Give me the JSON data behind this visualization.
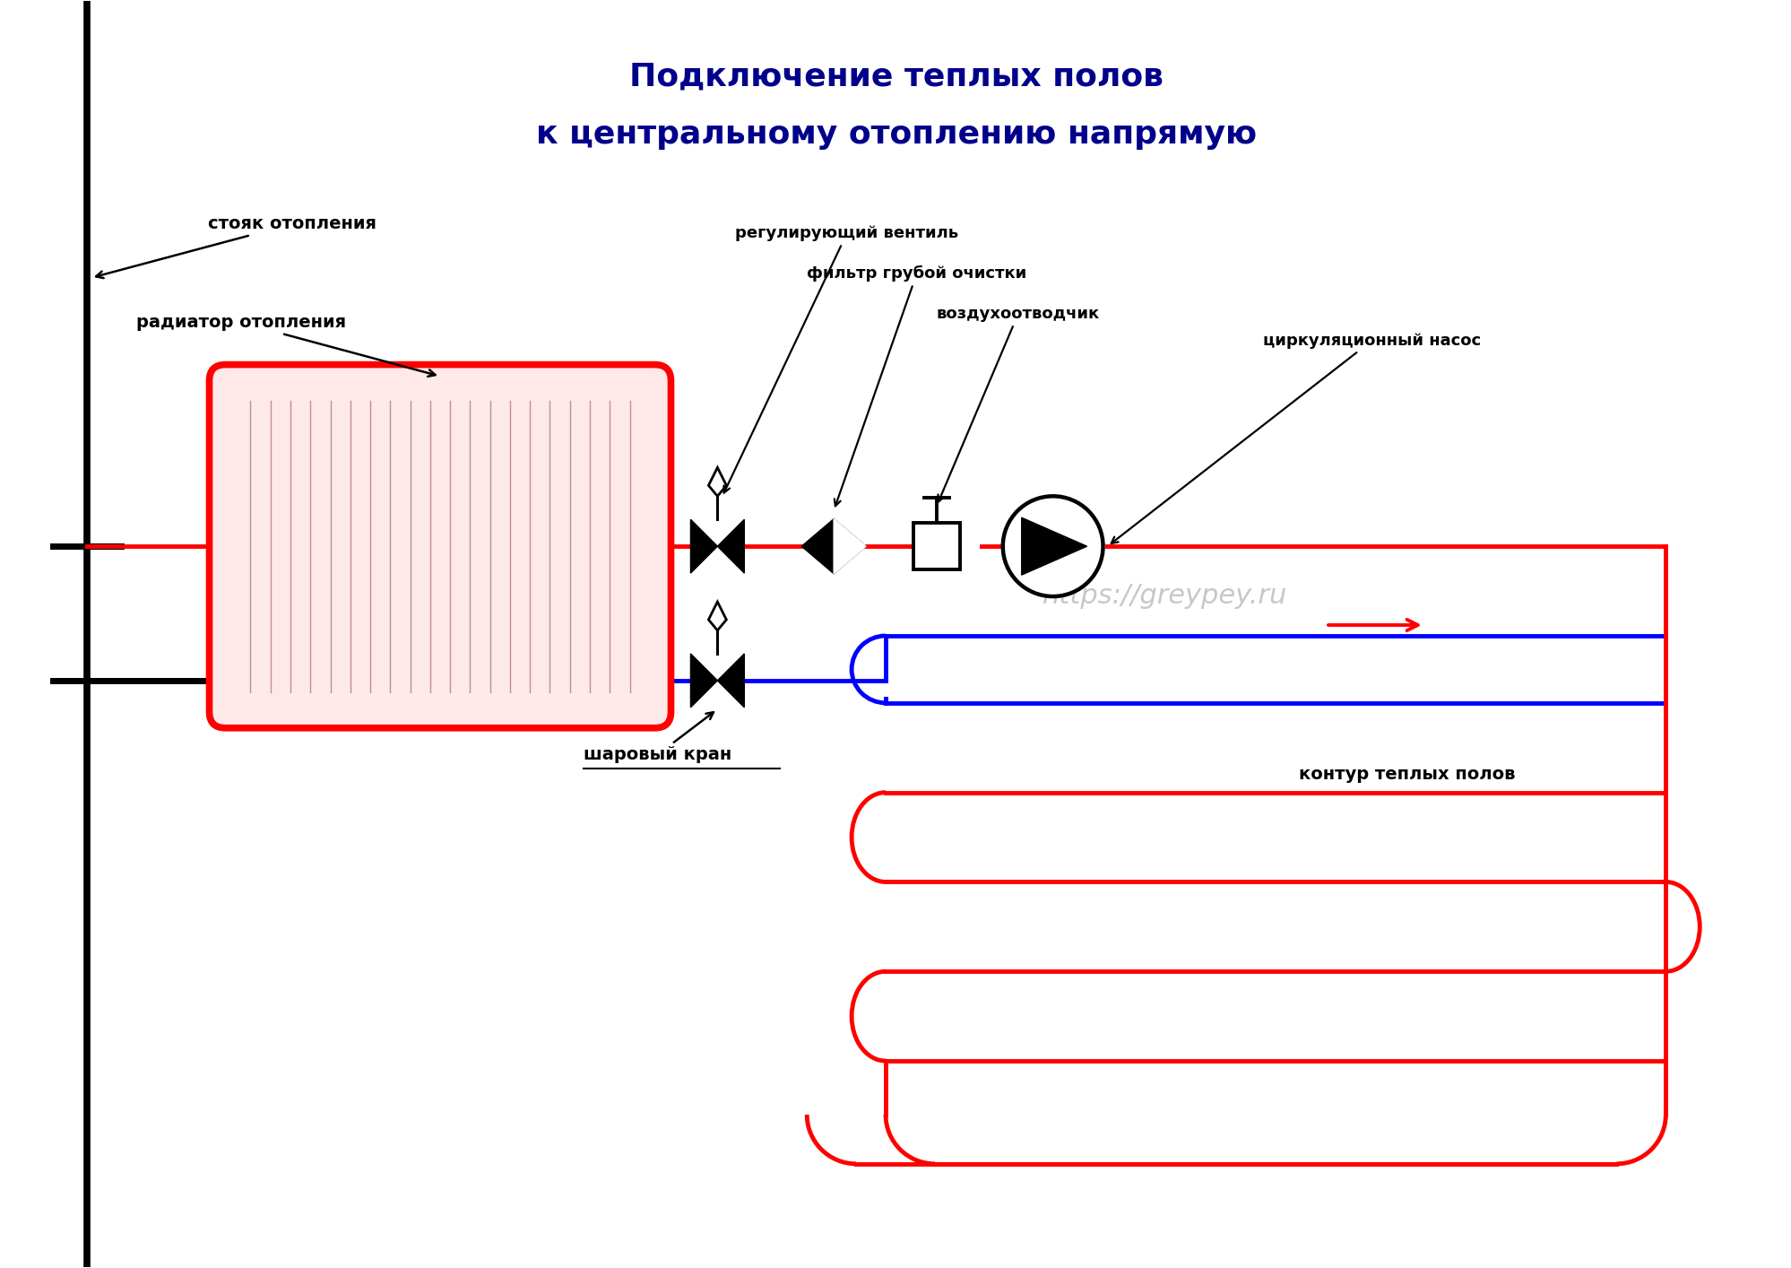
{
  "title_line1": "Подключение теплых полов",
  "title_line2": "к центральному отоплению напрямую",
  "title_color": "#00008B",
  "title_fontsize": 26,
  "bg_color": "#FFFFFF",
  "watermark": "https://greypey.ru",
  "watermark_color": "#AAAAAA",
  "label_radiator": "радиатор отопления",
  "label_stoyak": "стояк отопления",
  "label_valve_reg": "регулирующий вентиль",
  "label_filter": "фильтр грубой очистки",
  "label_air": "воздухоотводчик",
  "label_pump": "циркуляционный насос",
  "label_ball": "шаровый кран",
  "label_contour": "контур теплых полов",
  "pipe_red": "#FF0000",
  "pipe_blue": "#0000FF",
  "pipe_black": "#000000",
  "radiator_border": "#FF0000",
  "radiator_fill": "#FFE8E8",
  "lw_pipe": 3.5,
  "lw_stoyak": 5.5
}
